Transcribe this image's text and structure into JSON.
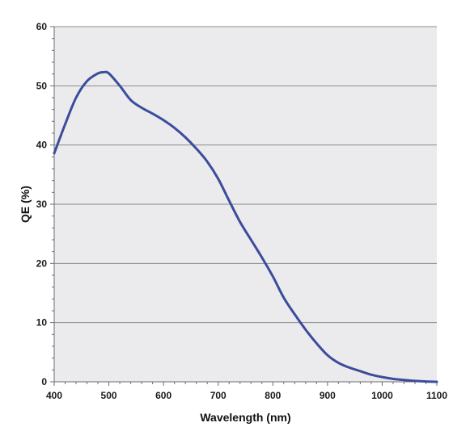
{
  "chart_data": {
    "type": "line",
    "title": "",
    "xlabel": "Wavelength (nm)",
    "ylabel": "QE (%)",
    "xlim": [
      400,
      1100
    ],
    "ylim": [
      0,
      60
    ],
    "x_ticks": [
      400,
      500,
      600,
      700,
      800,
      900,
      1000,
      1100
    ],
    "y_ticks": [
      0,
      10,
      20,
      30,
      40,
      50,
      60
    ],
    "grid": "horizontal",
    "legend": "none",
    "series": [
      {
        "color": "#3a4c9c",
        "x": [
          400,
          420,
          440,
          460,
          480,
          490,
          500,
          520,
          540,
          560,
          580,
          600,
          620,
          640,
          660,
          680,
          700,
          720,
          740,
          760,
          780,
          800,
          820,
          840,
          860,
          880,
          900,
          920,
          940,
          960,
          980,
          1000,
          1020,
          1040,
          1060,
          1080,
          1100
        ],
        "y": [
          38.6,
          43.5,
          48.0,
          50.8,
          52.1,
          52.3,
          52.1,
          50.0,
          47.6,
          46.3,
          45.3,
          44.2,
          42.9,
          41.3,
          39.4,
          37.2,
          34.3,
          30.6,
          27.0,
          24.0,
          21.0,
          17.8,
          14.2,
          11.4,
          8.8,
          6.5,
          4.5,
          3.2,
          2.4,
          1.8,
          1.2,
          0.8,
          0.5,
          0.3,
          0.15,
          0.05,
          0.0
        ]
      }
    ]
  },
  "colors": {
    "plot_background": "#ebebee",
    "gridline": "#8a8a8a",
    "axis": "#6e6e6e",
    "line": "#3a4c9c"
  }
}
